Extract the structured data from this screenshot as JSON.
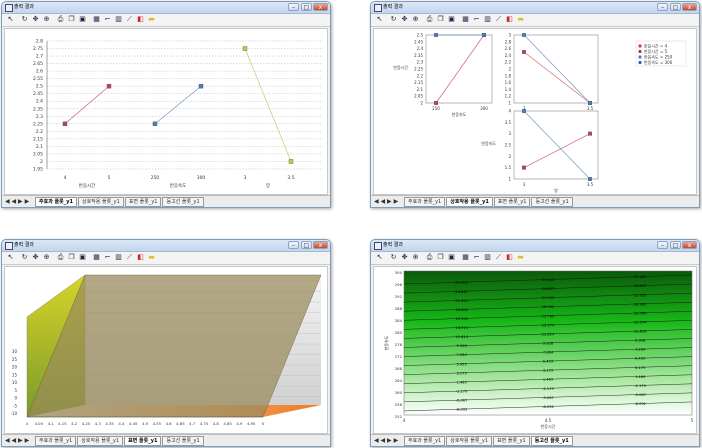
{
  "window_title": "출력 결과",
  "window_buttons": {
    "minimize": "–",
    "maximize": "□",
    "close": "x"
  },
  "toolbar_icons": [
    "cursor-icon",
    "rotate-icon",
    "move-icon",
    "zoom-icon",
    "print-icon",
    "copy-icon",
    "save-icon",
    "grid-icon",
    "axis-icon",
    "chart-icon",
    "line-icon",
    "color-icon",
    "palette-icon"
  ],
  "tab_nav": "◀ ◀ ▶ ▶",
  "windows": [
    {
      "tabs": [
        "주효과 플롯_y1",
        "상호작용 플롯_y1",
        "표면 플롯_y1",
        "등고선 플롯_y1"
      ],
      "active_tab": 0
    },
    {
      "tabs": [
        "주효과 플롯_y1",
        "상호작용 플롯_y1",
        "표면 플롯_y1",
        "등고선 플롯_y1"
      ],
      "active_tab": 1
    },
    {
      "tabs": [
        "주효과 플롯_y1",
        "상호작용 플롯_y1",
        "표면 플롯_y1",
        "등고선 플롯_y1"
      ],
      "active_tab": 2
    },
    {
      "tabs": [
        "주효과 플롯_y1",
        "상호작용 플롯_y1",
        "표면 플롯_y1",
        "등고선 플롯_y1"
      ],
      "active_tab": 3
    }
  ],
  "chart_data": [
    {
      "type": "line",
      "yticks": [
        "2.8",
        "2.75",
        "2.7",
        "2.65",
        "2.6",
        "2.55",
        "2.5",
        "2.45",
        "2.4",
        "2.35",
        "2.3",
        "2.25",
        "2.2",
        "2.15",
        "2.1",
        "2.05",
        "2",
        "1.95"
      ],
      "ylim": [
        1.95,
        2.8
      ],
      "grid": true,
      "factors": [
        {
          "label": "반응시간",
          "x": [
            "4",
            "5"
          ],
          "values": [
            2.25,
            2.5
          ],
          "color": "#c0405a"
        },
        {
          "label": "반응속도",
          "x": [
            "250",
            "300"
          ],
          "values": [
            2.25,
            2.5
          ],
          "color": "#4a7fbf"
        },
        {
          "label": "양",
          "x": [
            "3",
            "3.5"
          ],
          "values": [
            2.75,
            2.0
          ],
          "color": "#a9c23a"
        }
      ]
    },
    {
      "type": "line",
      "legend": [
        "반응시간 = 4",
        "반응시간 = 5",
        "반응속도 = 250",
        "반응속도 = 300"
      ],
      "legend_colors": [
        "#c0405a",
        "#a04050",
        "#4a7fbf",
        "#3a5f9f"
      ],
      "legend_position": "right",
      "panels": [
        {
          "xticks": [
            "250",
            "300"
          ],
          "xlabel": "반응속도",
          "ylabel": "반응시간",
          "yticks": [
            "2.5",
            "2.45",
            "2.4",
            "2.35",
            "2.3",
            "2.25",
            "2.2",
            "2.15",
            "2.1",
            "2.05",
            "2"
          ],
          "ylim": [
            2,
            2.5
          ],
          "series": [
            {
              "color": "#c0405a",
              "values": [
                2.0,
                2.5
              ]
            },
            {
              "color": "#4a7fbf",
              "values": [
                2.5,
                2.5
              ]
            }
          ]
        },
        {
          "xticks": [
            "3",
            "3.5"
          ],
          "xlabel": "",
          "ylabel": "",
          "yticks": [
            "3",
            "2.8",
            "2.6",
            "2.4",
            "2.2",
            "2",
            "1.8",
            "1.6",
            "1.4",
            "1.2",
            "1"
          ],
          "ylim": [
            1,
            3
          ],
          "series": [
            {
              "color": "#c0405a",
              "values": [
                2.5,
                1.0
              ]
            },
            {
              "color": "#4a7fbf",
              "values": [
                3.0,
                1.0
              ]
            }
          ]
        },
        {
          "xticks": [
            "3",
            "3.5"
          ],
          "xlabel": "양",
          "ylabel": "반응속도",
          "yticks": [
            "4",
            "3.5",
            "3",
            "2.5",
            "2",
            "1.5",
            "1"
          ],
          "ylim": [
            1,
            4
          ],
          "series": [
            {
              "color": "#c0405a",
              "values": [
                1.5,
                3.0
              ]
            },
            {
              "color": "#4a7fbf",
              "values": [
                4.0,
                1.0
              ]
            }
          ]
        }
      ]
    },
    {
      "type": "area",
      "yticks": [
        "30",
        "25",
        "20",
        "15",
        "10",
        "5",
        "0",
        "-5",
        "-10"
      ],
      "ylim": [
        -10,
        30
      ],
      "xticks": [
        "4",
        "4.05",
        "4.1",
        "4.15",
        "4.2",
        "4.25",
        "4.3",
        "4.35",
        "4.4",
        "4.45",
        "4.5",
        "4.55",
        "4.6",
        "4.65",
        "4.7",
        "4.75",
        "4.8",
        "4.85",
        "4.9",
        "4.95",
        "5"
      ]
    },
    {
      "type": "heatmap",
      "ylabel": "반응속도",
      "xlabel": "반응시간",
      "yticks": [
        "300",
        "296",
        "292",
        "288",
        "284",
        "280",
        "276",
        "272",
        "268",
        "264",
        "260",
        "256",
        "252"
      ],
      "xticks": [
        "4",
        "4.5",
        "5"
      ],
      "contour_labels": [
        "27.402",
        "24.847",
        "21.955",
        "18.962",
        "15.760",
        "13.974",
        "11.614",
        "9.328",
        "7.264",
        "5.459",
        "3.179",
        "1.469",
        "-2.179",
        "-5.067",
        "-8.092"
      ]
    }
  ]
}
